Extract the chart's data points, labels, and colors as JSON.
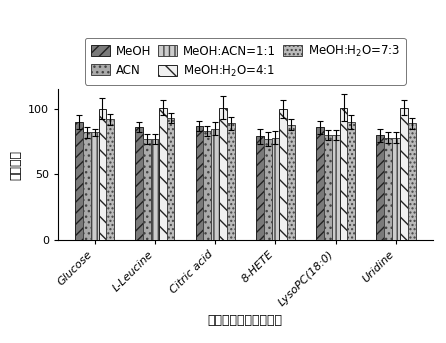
{
  "categories": [
    "Glucose",
    "L-Leucine",
    "Citric acid",
    "8-HETE",
    "LysoPC(18:0)",
    "Uridine"
  ],
  "series_labels_tex": [
    "MeOH",
    "ACN",
    "MeOH:ACN=1:1",
    "MeOH:H$_2$O=4:1",
    "MeOH:H$_2$O=7:3"
  ],
  "values": [
    [
      90,
      86,
      87,
      79,
      86,
      80
    ],
    [
      82,
      77,
      83,
      77,
      80,
      78
    ],
    [
      82,
      77,
      85,
      78,
      80,
      78
    ],
    [
      100,
      101,
      101,
      100,
      101,
      101
    ],
    [
      92,
      93,
      89,
      88,
      90,
      89
    ]
  ],
  "errors": [
    [
      5,
      4,
      4,
      6,
      5,
      5
    ],
    [
      4,
      4,
      4,
      5,
      4,
      4
    ],
    [
      3,
      4,
      5,
      5,
      4,
      4
    ],
    [
      8,
      6,
      9,
      7,
      10,
      6
    ],
    [
      4,
      4,
      5,
      4,
      5,
      4
    ]
  ],
  "hatches": [
    "///",
    "...",
    "|||",
    "\\\\",
    "...."
  ],
  "facecolors": [
    "#7a7a7a",
    "#aaaaaa",
    "#cccccc",
    "#f0f0f0",
    "#bbbbbb"
  ],
  "edgecolors": [
    "#222222",
    "#444444",
    "#444444",
    "#222222",
    "#444444"
  ],
  "ylim": [
    0,
    115
  ],
  "yticks": [
    0,
    50,
    100
  ],
  "ylabel": "相对信号",
  "xlabel": "不同极性的内源代谢物",
  "bar_width": 0.13,
  "tick_fontsize": 8,
  "axis_fontsize": 9,
  "legend_fontsize": 8.5
}
